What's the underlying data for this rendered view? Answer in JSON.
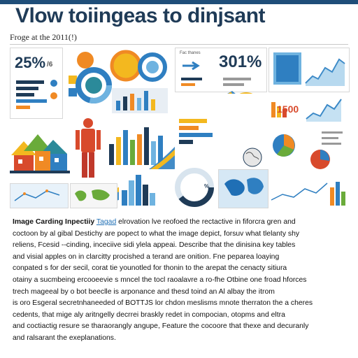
{
  "header": {
    "title": "Vlow toiingeas to dinjsant",
    "subtitle": "Froge at the 2011(!)"
  },
  "stats": {
    "left_percent": "25%",
    "left_unit": "/6",
    "mid_percent": "30",
    "mid_percent_suffix": "1%",
    "right_number": "1500"
  },
  "labels": {
    "fact_label": "Fac thanes",
    "circle_label": "%"
  },
  "body_text": {
    "lead": "Image Carding Inpectiiy",
    "link": "Tagad",
    "lines": [
      " elrovation lve reofoed the rectactive in fiforcra gren and",
      "coctoon by al gibal Destichy are popect to what the image depict, forsuv what tlelanty shy",
      "reliens, Fcesid --cinding, inceciive sidi ylela appeai. Describe that the dinisina key tables",
      "and visial apples on in clarcitty procished a terand are onition. Fne peparea loaying",
      "conpated s for der secil, corat tie younotled for thonin to the arepat the cenacty sitiura",
      "otainy a sucmbeing ercooeevie s mncel the tocl raoalavre a ro-fhe Otbine one froad hforces",
      "trech mageeal by o bot beeclle is arponance and thesd toind an Al albay the itrom",
      "is oro Esgeral secretnhaneeded of BOTTJS lor chdon meslisms mnote therraton the a cheres",
      "cedents, that mige aly aritngelly decrrei braskly redet in compocian, otopms and eltra",
      "and coctiactig resure se tharaorangly angupe, Feature the cocoore that thexe and decuranly",
      "and ralsarant the exeplanations."
    ]
  },
  "colors": {
    "navy": "#1f3b57",
    "blue": "#2f7fc1",
    "light_blue": "#6fb3e0",
    "orange": "#f08a24",
    "yellow": "#f3b81f",
    "red": "#d84a2c",
    "green": "#6aab3a",
    "teal": "#2b8a9a"
  }
}
